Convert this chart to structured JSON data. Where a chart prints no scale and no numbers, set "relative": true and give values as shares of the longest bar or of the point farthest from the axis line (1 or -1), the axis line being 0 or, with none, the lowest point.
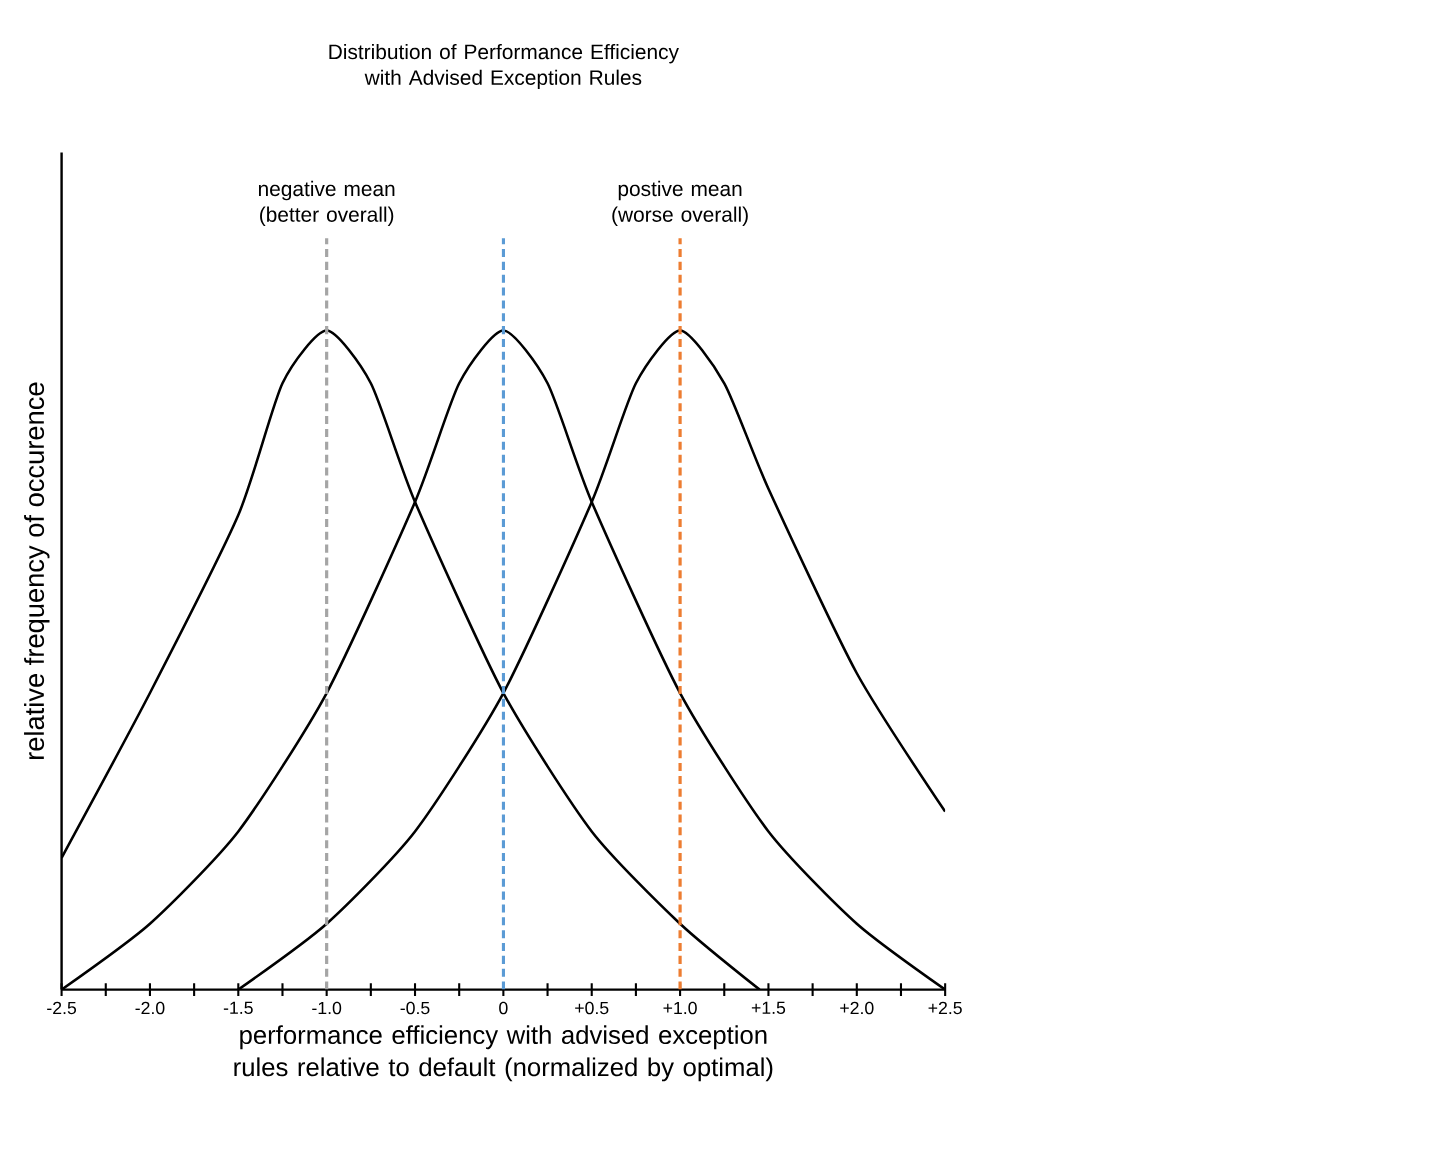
{
  "chart_data": {
    "type": "line",
    "title": "Distribution of Performance Efficiency with Advised Exception Rules",
    "xlabel": "performance efficiency with advised exception rules relative to default (normalized by optimal)",
    "ylabel": "relative frequency of occurence",
    "relative": true,
    "grid": false,
    "marker": "none",
    "line_style": "solid",
    "xlim": [
      -2.5,
      2.5
    ],
    "xticks": [
      -2.5,
      {
        "value": -2.25,
        "label": null
      },
      {
        "value": -2.0,
        "label": "-2.0"
      },
      {
        "value": -1.75,
        "label": null
      },
      -1.5,
      {
        "value": -1.25,
        "label": null
      },
      {
        "value": -1.0,
        "label": "-1.0"
      },
      {
        "value": -0.75,
        "label": null
      },
      -0.5,
      {
        "value": -0.25,
        "label": null
      },
      0,
      {
        "value": 0.25,
        "label": null
      },
      {
        "value": 0.5,
        "label": "+0.5"
      },
      {
        "value": 0.75,
        "label": null
      },
      {
        "value": 1.0,
        "label": "+1.0"
      },
      {
        "value": 1.25,
        "label": null
      },
      {
        "value": 1.5,
        "label": "+1.5"
      },
      {
        "value": 1.75,
        "label": null
      },
      {
        "value": 2.0,
        "label": "+2.0"
      },
      {
        "value": 2.25,
        "label": null
      },
      {
        "value": 2.5,
        "label": "+2.5"
      }
    ],
    "series": [
      {
        "color": "#000000",
        "x": [
          -2.5,
          -2.0,
          -1.5,
          -1.25,
          -1.0,
          -0.75,
          -0.5,
          0,
          0.5,
          1.0,
          1.45
        ],
        "values": [
          0.2,
          0.45,
          0.72,
          0.92,
          1,
          0.92,
          0.74,
          0.45,
          0.24,
          0.1,
          0
        ]
      },
      {
        "color": "#000000",
        "x": [
          -2.5,
          -2.0,
          -1.5,
          -1.0,
          -0.5,
          -0.25,
          0,
          0.25,
          0.5,
          1.0,
          1.5,
          2.0,
          2.5
        ],
        "values": [
          0,
          0.1,
          0.24,
          0.45,
          0.74,
          0.92,
          1,
          0.92,
          0.74,
          0.45,
          0.24,
          0.1,
          0
        ]
      },
      {
        "color": "#000000",
        "x": [
          -1.5,
          -1.0,
          -0.5,
          0,
          0.5,
          0.75,
          1.0,
          1.25,
          1.5,
          2.0,
          2.5
        ],
        "values": [
          0,
          0.1,
          0.24,
          0.45,
          0.74,
          0.92,
          1,
          0.92,
          0.76,
          0.48,
          0.27
        ]
      }
    ],
    "ref_lines": [
      {
        "axis": "x",
        "value": -1,
        "label": "negative mean (better overall)",
        "color": "#a5a5a5",
        "line_style": "dashed"
      },
      {
        "axis": "x",
        "value": 0,
        "color": "#5b9bd5",
        "line_style": "dashed"
      },
      {
        "axis": "x",
        "value": 1,
        "label": "postive mean (worse overall)",
        "color": "#ed7d31",
        "line_style": "dashed"
      }
    ]
  }
}
